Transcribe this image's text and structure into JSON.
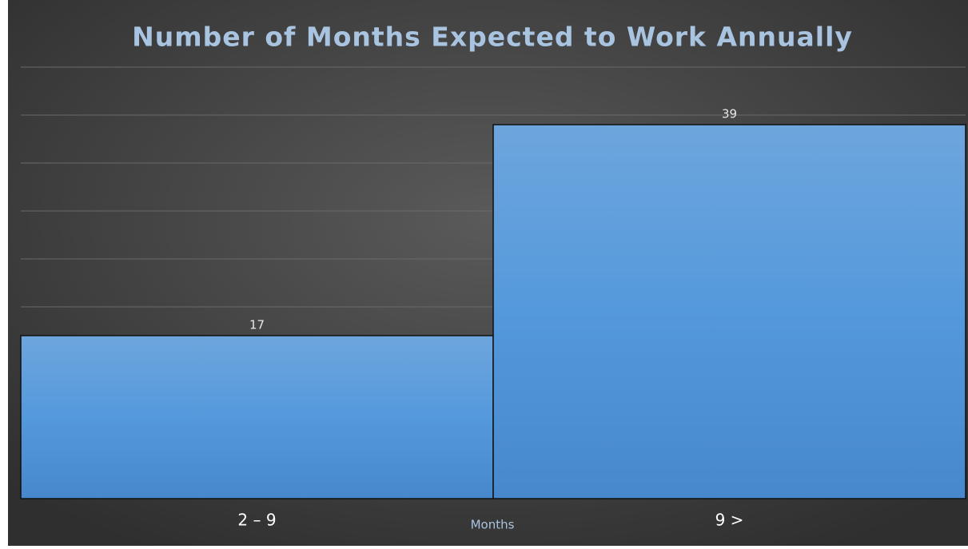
{
  "chart_data": {
    "type": "bar",
    "title": "Number of Months Expected to Work Annually",
    "x_label": "Months",
    "categories": [
      "2 – 9",
      "9 >"
    ],
    "values": [
      17,
      39
    ],
    "color": "#5197d8",
    "ylim": [
      0,
      45
    ],
    "yticks": [
      0,
      5,
      10,
      15,
      20,
      25,
      30,
      35,
      40,
      45
    ],
    "grid": true
  }
}
